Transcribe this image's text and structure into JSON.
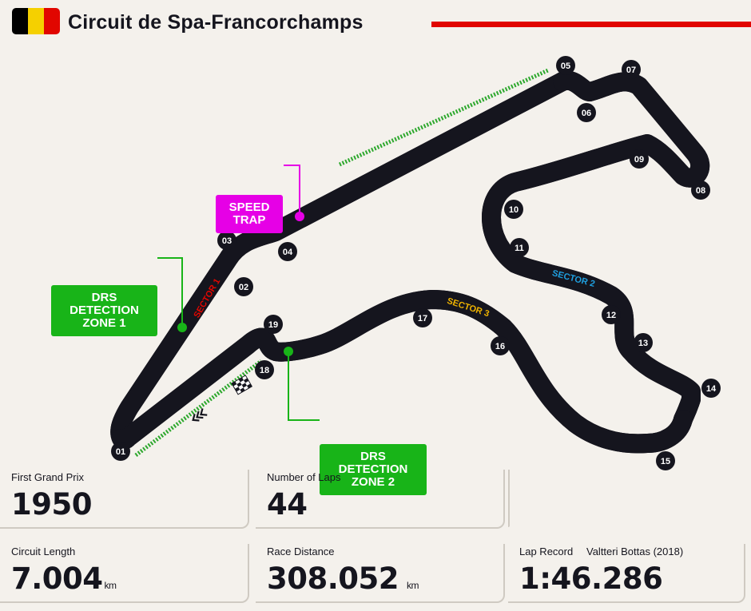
{
  "header": {
    "title": "Circuit de Spa-Francorchamps",
    "flag_colors": [
      "#000000",
      "#f5d000",
      "#e10600"
    ],
    "accent_color": "#e10600"
  },
  "map": {
    "callouts": {
      "speed_trap": "SPEED TRAP",
      "drs_zone_1": "DRS DETECTION ZONE 1",
      "drs_zone_2": "DRS DETECTION ZONE 2"
    },
    "sector_labels": [
      "SECTOR 1",
      "SECTOR 2",
      "SECTOR 3"
    ],
    "sector_colors": [
      "#e10600",
      "#1fa0e0",
      "#f0b400"
    ],
    "corners": [
      "01",
      "02",
      "03",
      "04",
      "05",
      "06",
      "07",
      "08",
      "09",
      "10",
      "11",
      "12",
      "13",
      "14",
      "15",
      "16",
      "17",
      "18",
      "19"
    ],
    "icons": [
      "start-finish-flag-icon",
      "direction-chevrons-icon"
    ]
  },
  "stats": {
    "first_gp": {
      "label": "First Grand Prix",
      "value": "1950"
    },
    "laps": {
      "label": "Number of Laps",
      "value": "44"
    },
    "length": {
      "label": "Circuit Length",
      "value": "7.004",
      "unit": "km"
    },
    "distance": {
      "label": "Race Distance",
      "value": "308.052",
      "unit": "km"
    },
    "lap_record": {
      "label": "Lap Record",
      "holder": "Valtteri Bottas (2018)",
      "value": "1:46.286"
    }
  }
}
